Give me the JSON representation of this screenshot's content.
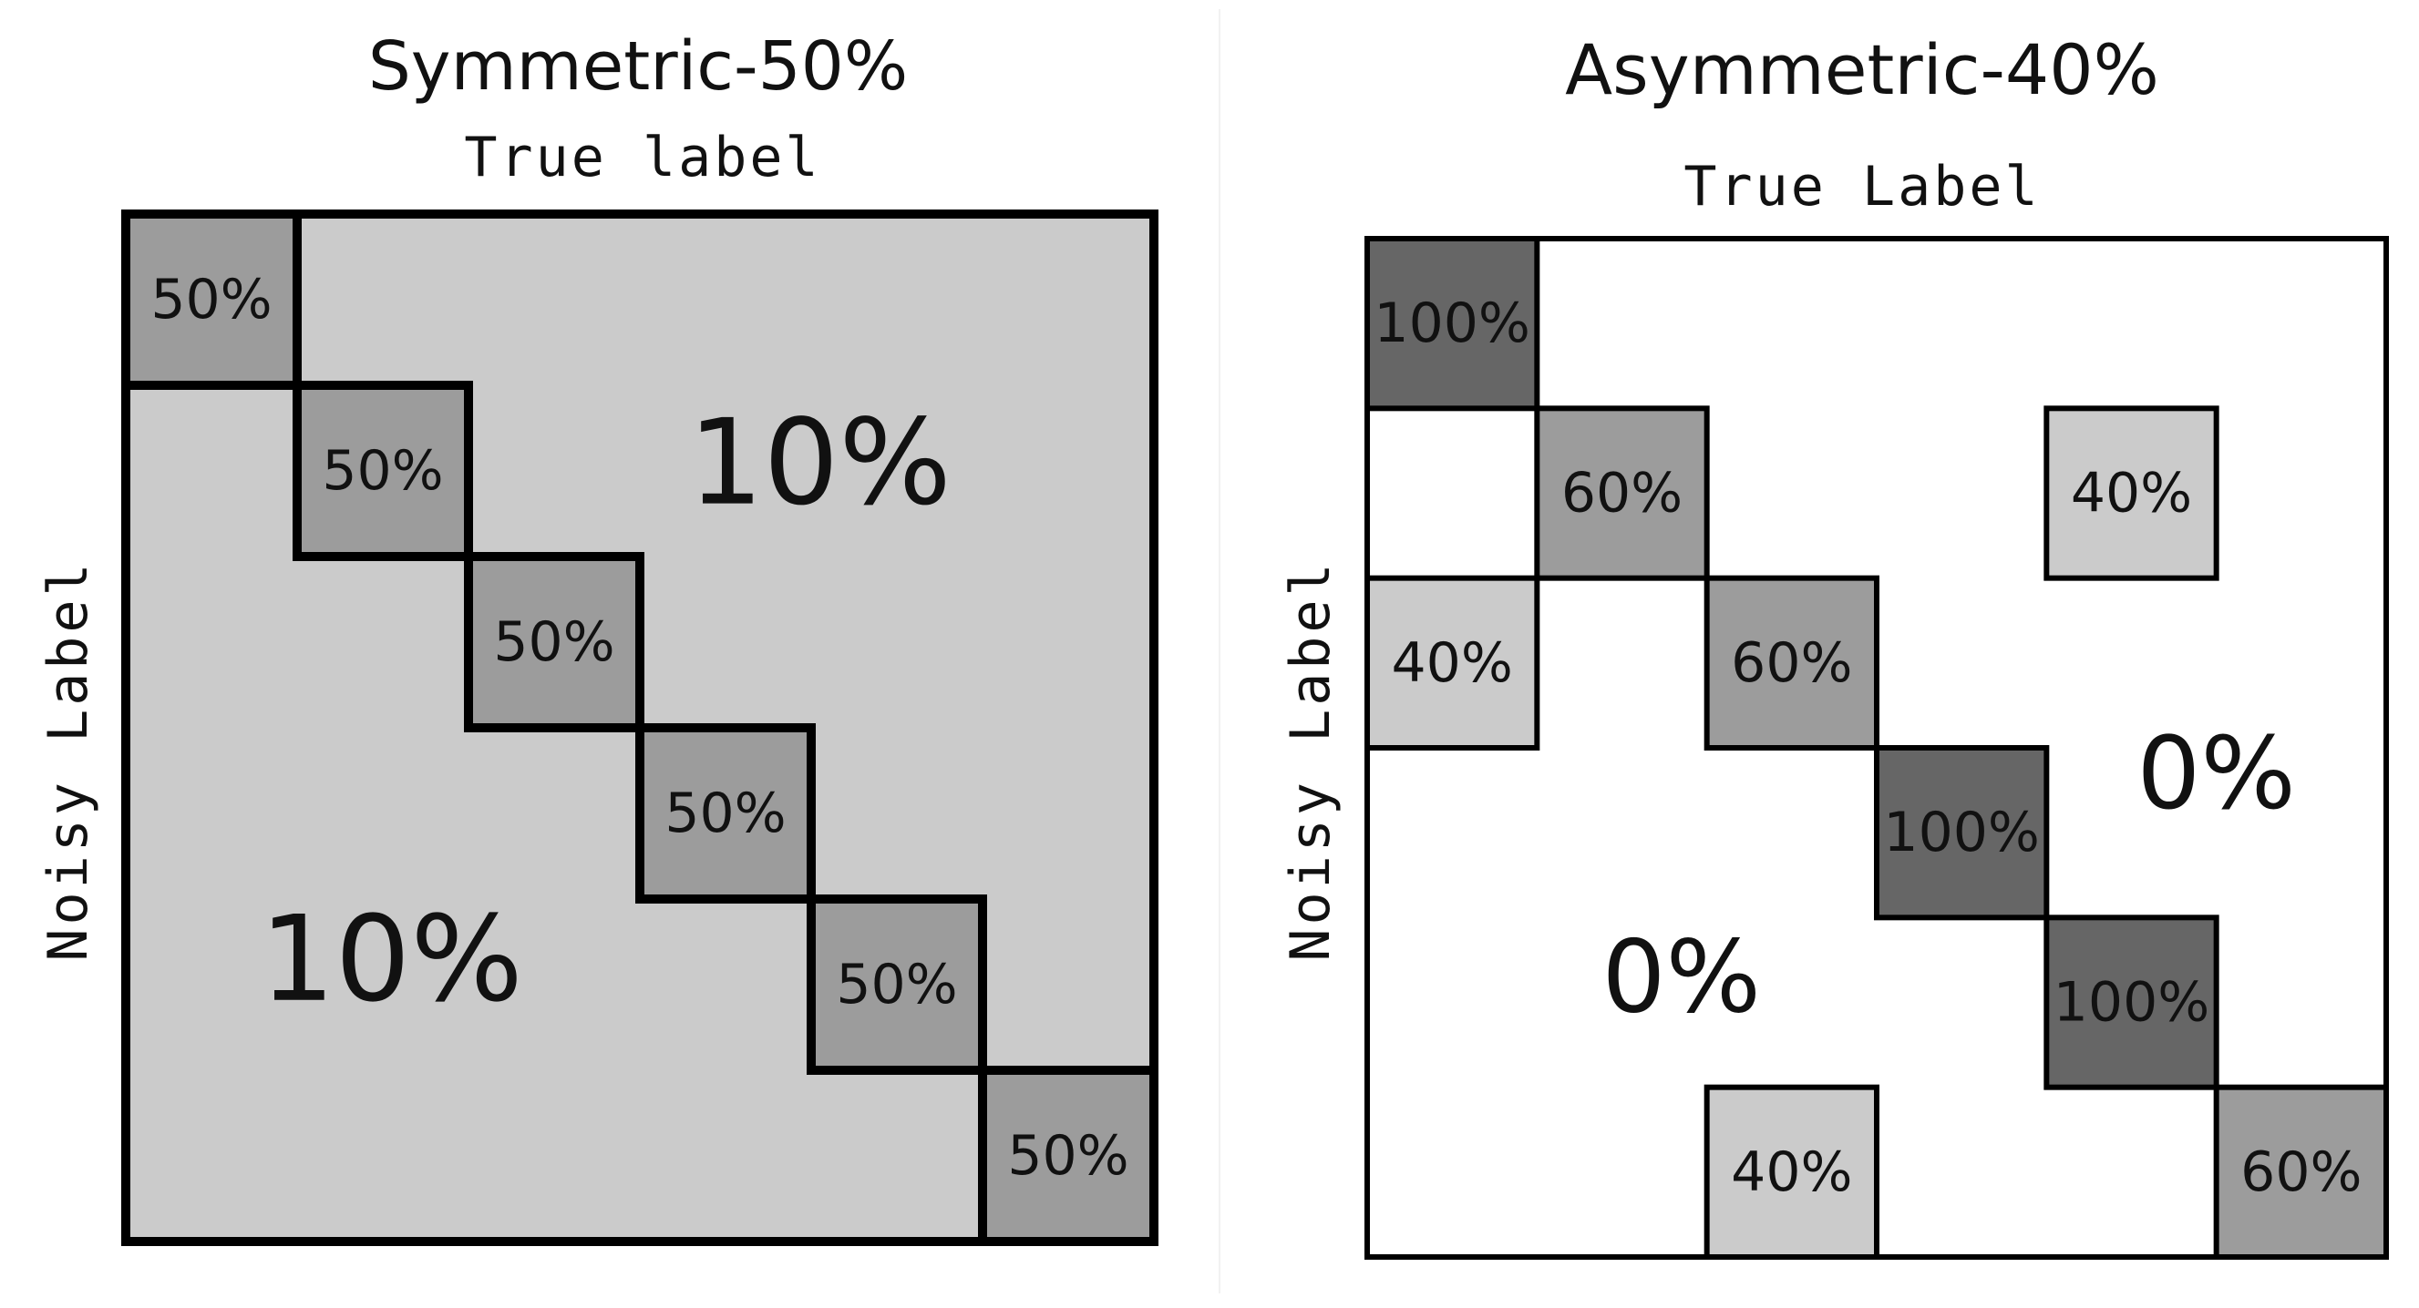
{
  "colors": {
    "background": "#ffffff",
    "cell_fill_light": "#cbcbcb",
    "cell_fill_mid": "#9c9c9c",
    "cell_fill_dark": "#666666",
    "cell_fill_empty": "#ffffff",
    "border": "#000000",
    "text": "#111111"
  },
  "panels": [
    {
      "id": "symmetric",
      "title": "Symmetric-50%",
      "x_axis_label": "True label",
      "y_axis_label": "Noisy Label",
      "size": 6,
      "background_fill": "cell_fill_light",
      "diagonal_fill": "cell_fill_mid",
      "diagonal_value": "50%",
      "off_diagonal_upper_value": "10%",
      "off_diagonal_lower_value": "10%"
    },
    {
      "id": "asymmetric",
      "title": "Asymmetric-40%",
      "x_axis_label": "True Label",
      "y_axis_label": "Noisy Label",
      "size": 6,
      "background_fill": "cell_fill_empty",
      "off_diagonal_upper_value": "0%",
      "off_diagonal_lower_value": "0%",
      "cells": [
        {
          "row": 0,
          "col": 0,
          "value": "100%",
          "fill": "cell_fill_dark"
        },
        {
          "row": 1,
          "col": 1,
          "value": "60%",
          "fill": "cell_fill_mid"
        },
        {
          "row": 1,
          "col": 4,
          "value": "40%",
          "fill": "cell_fill_light"
        },
        {
          "row": 2,
          "col": 0,
          "value": "40%",
          "fill": "cell_fill_light"
        },
        {
          "row": 2,
          "col": 2,
          "value": "60%",
          "fill": "cell_fill_mid"
        },
        {
          "row": 3,
          "col": 3,
          "value": "100%",
          "fill": "cell_fill_dark"
        },
        {
          "row": 4,
          "col": 4,
          "value": "100%",
          "fill": "cell_fill_dark"
        },
        {
          "row": 5,
          "col": 2,
          "value": "40%",
          "fill": "cell_fill_light"
        },
        {
          "row": 5,
          "col": 5,
          "value": "60%",
          "fill": "cell_fill_mid"
        }
      ]
    }
  ]
}
